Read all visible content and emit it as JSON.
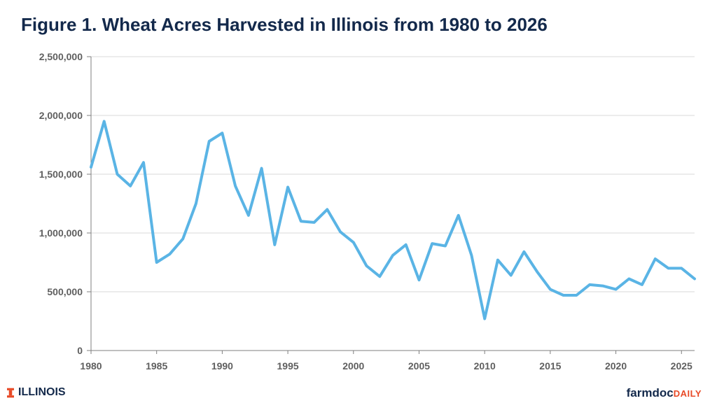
{
  "title": "Figure 1.  Wheat Acres Harvested in Illinois from 1980 to 2026",
  "footer": {
    "left_logo": "ILLINOIS",
    "right_logo_main": "farmdoc",
    "right_logo_sub": "DAILY"
  },
  "colors": {
    "line": "#5AB4E5",
    "title": "#13294B",
    "accent": "#E84A27",
    "axis": "#7f7f7f",
    "grid": "#d9d9d9"
  },
  "chart_data": {
    "type": "line",
    "title": "Figure 1.  Wheat Acres Harvested in Illinois from 1980 to 2026",
    "xlabel": "",
    "ylabel": "",
    "xlim": [
      1980,
      2026
    ],
    "ylim": [
      0,
      2500000
    ],
    "x_ticks": [
      1980,
      1985,
      1990,
      1995,
      2000,
      2005,
      2010,
      2015,
      2020,
      2025
    ],
    "x_tick_labels": [
      "1980",
      "1985",
      "1990",
      "1995",
      "2000",
      "2005",
      "2010",
      "2015",
      "2020",
      "2025"
    ],
    "y_ticks": [
      0,
      500000,
      1000000,
      1500000,
      2000000,
      2500000
    ],
    "y_tick_labels": [
      "0",
      "500,000",
      "1,000,000",
      "1,500,000",
      "2,000,000",
      "2,500,000"
    ],
    "grid": true,
    "series": [
      {
        "x": [
          1980,
          1981,
          1982,
          1983,
          1984,
          1985,
          1986,
          1987,
          1988,
          1989,
          1990,
          1991,
          1992,
          1993,
          1994,
          1995,
          1996,
          1997,
          1998,
          1999,
          2000,
          2001,
          2002,
          2003,
          2004,
          2005,
          2006,
          2007,
          2008,
          2009,
          2010,
          2011,
          2012,
          2013,
          2014,
          2015,
          2016,
          2017,
          2018,
          2019,
          2020,
          2021,
          2022,
          2023,
          2024,
          2025,
          2026
        ],
        "values": [
          1560000,
          1950000,
          1500000,
          1400000,
          1600000,
          750000,
          820000,
          950000,
          1250000,
          1780000,
          1850000,
          1400000,
          1150000,
          1550000,
          900000,
          1390000,
          1100000,
          1090000,
          1200000,
          1010000,
          920000,
          720000,
          630000,
          810000,
          900000,
          600000,
          910000,
          890000,
          1150000,
          810000,
          270000,
          770000,
          640000,
          840000,
          670000,
          520000,
          470000,
          470000,
          560000,
          550000,
          520000,
          610000,
          560000,
          780000,
          700000,
          700000,
          610000
        ]
      }
    ]
  }
}
